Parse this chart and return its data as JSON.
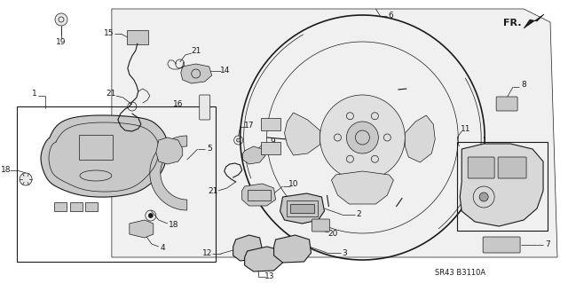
{
  "background_color": "#ffffff",
  "line_color": "#1a1a1a",
  "diagram_code": "SR43 B3110A",
  "compass_label": "FR.",
  "figsize": [
    6.4,
    3.19
  ],
  "dpi": 100,
  "gray_fill": "#c8c8c8",
  "light_gray": "#e0e0e0"
}
